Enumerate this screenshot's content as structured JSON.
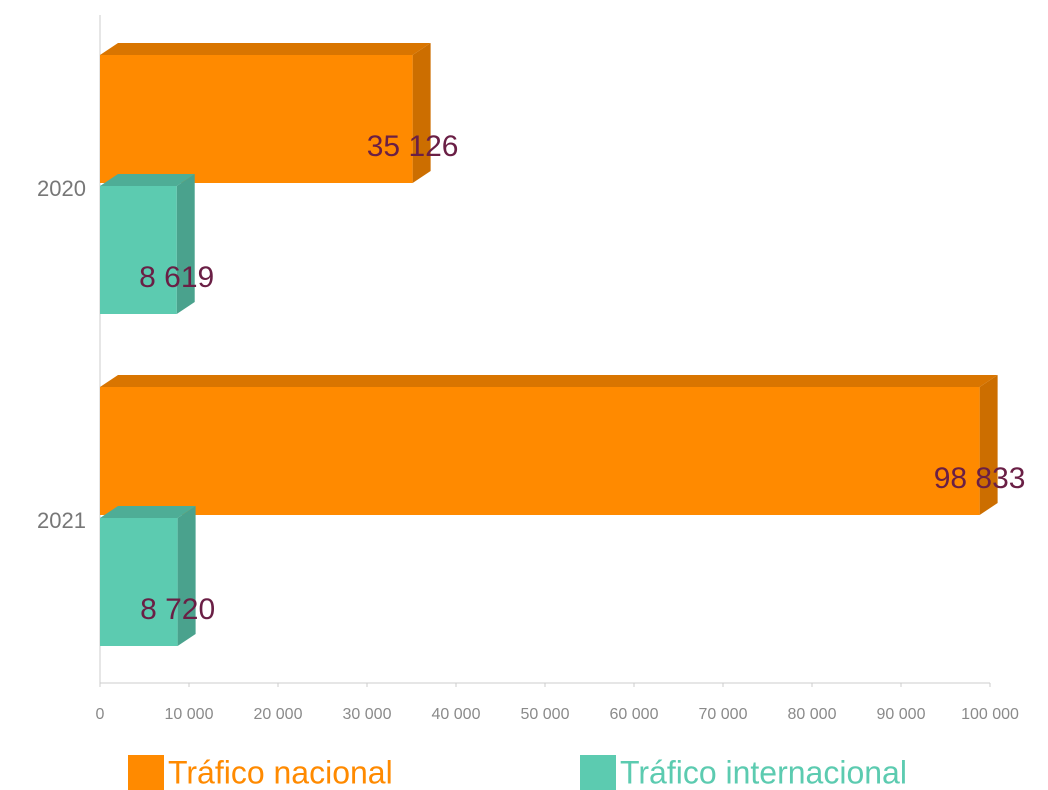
{
  "chart_data": {
    "type": "bar",
    "orientation": "horizontal",
    "categories": [
      "2020",
      "2021"
    ],
    "series": [
      {
        "name": "Tráfico nacional",
        "color": "#ff8a00",
        "values": [
          35126,
          98833
        ],
        "value_labels": [
          "35 126",
          "98 833"
        ]
      },
      {
        "name": "Tráfico internacional",
        "color": "#5ccbb0",
        "values": [
          8619,
          8720
        ],
        "value_labels": [
          "8 619",
          "8 720"
        ]
      }
    ],
    "xlim": [
      0,
      100000
    ],
    "xticks": [
      0,
      {
        "value": 10000,
        "label": "10 000"
      },
      {
        "value": 20000,
        "label": "20 000"
      },
      {
        "value": 30000,
        "label": "30 000"
      },
      {
        "value": 40000,
        "label": "40 000"
      },
      {
        "value": 50000,
        "label": "50 000"
      },
      {
        "value": 60000,
        "label": "60 000"
      },
      {
        "value": 70000,
        "label": "70 000"
      },
      {
        "value": 80000,
        "label": "80 000"
      },
      {
        "value": 90000,
        "label": "90 000"
      },
      {
        "value": 100000,
        "label": "100 000"
      }
    ],
    "legend": "bottom"
  }
}
